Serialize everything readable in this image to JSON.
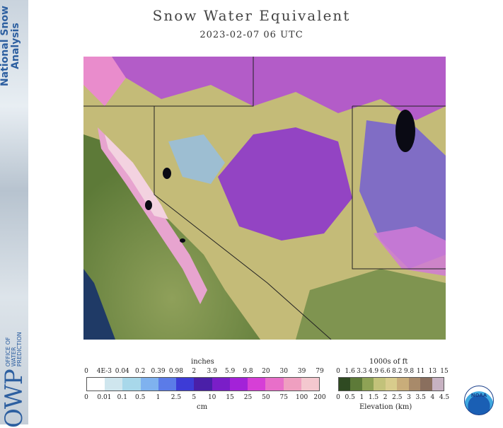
{
  "sidebar": {
    "top_text": "National Snow Analysis",
    "owp_abbrev": "OWP",
    "owp_line1": "OFFICE OF",
    "owp_line2": "WATER",
    "owp_line3": "PREDICTION"
  },
  "title": "Snow Water Equivalent",
  "subtitle": "2023-02-07 06 UTC",
  "swe_legend": {
    "top_unit": "inches",
    "bottom_unit": "cm",
    "top_ticks": [
      "0",
      "4E-3",
      "0.04",
      "0.2",
      "0.39",
      "0.98",
      "2",
      "3.9",
      "5.9",
      "9.8",
      "20",
      "30",
      "39",
      "79"
    ],
    "bottom_ticks": [
      "0",
      "0.01",
      "0.1",
      "0.5",
      "1",
      "2.5",
      "5",
      "10",
      "15",
      "25",
      "50",
      "75",
      "100",
      "200"
    ],
    "colors": [
      "#ffffff",
      "#cfe6ee",
      "#a8d8ea",
      "#7fb2ef",
      "#5b7be8",
      "#3d3bd6",
      "#4a1fa8",
      "#7a1ec8",
      "#a322d8",
      "#d63fd6",
      "#e86fc9",
      "#ef9fc0",
      "#f4c8cf"
    ]
  },
  "elev_legend": {
    "top_unit": "1000s of ft",
    "bottom_unit": "Elevation (km)",
    "top_ticks": [
      "0",
      "1.6",
      "3.3",
      "4.9",
      "6.6",
      "8.2",
      "9.8",
      "11",
      "13",
      "15"
    ],
    "bottom_ticks": [
      "0",
      "0.5",
      "1",
      "1.5",
      "2",
      "2.5",
      "3",
      "3.5",
      "4",
      "4.5"
    ],
    "colors": [
      "#2f4a22",
      "#5d7a38",
      "#8ea255",
      "#c2c27a",
      "#d8cc8c",
      "#c9ad7a",
      "#a88a6a",
      "#8a6f5e",
      "#c7b2c2"
    ]
  },
  "noaa_label": "NOAA"
}
